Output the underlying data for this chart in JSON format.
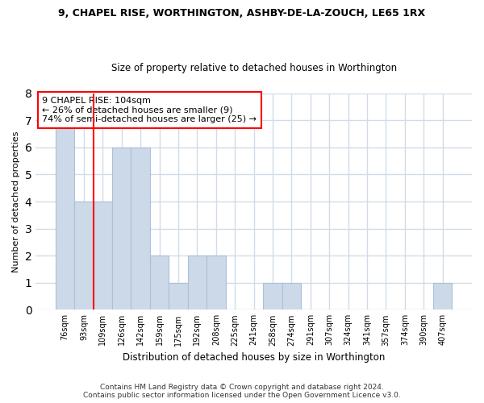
{
  "title1": "9, CHAPEL RISE, WORTHINGTON, ASHBY-DE-LA-ZOUCH, LE65 1RX",
  "title2": "Size of property relative to detached houses in Worthington",
  "xlabel": "Distribution of detached houses by size in Worthington",
  "ylabel": "Number of detached properties",
  "categories": [
    "76sqm",
    "93sqm",
    "109sqm",
    "126sqm",
    "142sqm",
    "159sqm",
    "175sqm",
    "192sqm",
    "208sqm",
    "225sqm",
    "241sqm",
    "258sqm",
    "274sqm",
    "291sqm",
    "307sqm",
    "324sqm",
    "341sqm",
    "357sqm",
    "374sqm",
    "390sqm",
    "407sqm"
  ],
  "values": [
    7,
    4,
    4,
    6,
    6,
    2,
    1,
    2,
    2,
    0,
    0,
    1,
    1,
    0,
    0,
    0,
    0,
    0,
    0,
    0,
    1
  ],
  "bar_color": "#ccd9e8",
  "bar_edge_color": "#adc0d8",
  "ylim_min": 0,
  "ylim_max": 8,
  "yticks": [
    0,
    1,
    2,
    3,
    4,
    5,
    6,
    7,
    8
  ],
  "red_line_x": 1.5,
  "annotation_title": "9 CHAPEL RISE: 104sqm",
  "annotation_line1": "← 26% of detached houses are smaller (9)",
  "annotation_line2": "74% of semi-detached houses are larger (25) →",
  "footer1": "Contains HM Land Registry data © Crown copyright and database right 2024.",
  "footer2": "Contains public sector information licensed under the Open Government Licence v3.0.",
  "bg_color": "#ffffff",
  "plot_bg_color": "#ffffff",
  "grid_color": "#d0dce8",
  "title1_fontsize": 9,
  "title2_fontsize": 8.5,
  "xlabel_fontsize": 8.5,
  "ylabel_fontsize": 8,
  "tick_fontsize": 7,
  "annot_fontsize": 8,
  "footer_fontsize": 6.5
}
